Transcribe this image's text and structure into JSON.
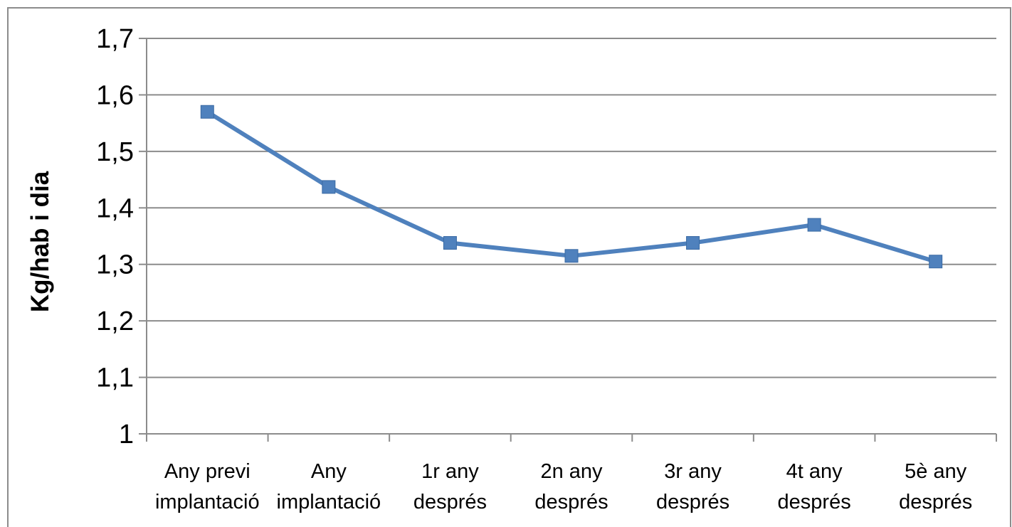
{
  "chart_data": {
    "type": "line",
    "title": "",
    "xlabel": "",
    "ylabel": "Kg/hab i dia",
    "categories": [
      [
        "Any previ",
        "implantació"
      ],
      [
        "Any",
        "implantació"
      ],
      [
        "1r any",
        "després"
      ],
      [
        "2n any",
        "després"
      ],
      [
        "3r any",
        "després"
      ],
      [
        "4t any",
        "després"
      ],
      [
        "5è any",
        "després"
      ]
    ],
    "series": [
      {
        "values": [
          1.57,
          1.437,
          1.338,
          1.315,
          1.338,
          1.37,
          1.305
        ]
      }
    ],
    "ylim": [
      1,
      1.7
    ],
    "yticks": [
      "1",
      "1,1",
      "1,2",
      "1,3",
      "1,4",
      "1,5",
      "1,6",
      "1,7"
    ],
    "grid": true,
    "legend": "none",
    "colors": {
      "line": "#4f81bd",
      "marker": "#4f81bd",
      "grid": "#8c8c8c",
      "axis": "#8c8c8c",
      "border": "#8c8c8c"
    }
  }
}
